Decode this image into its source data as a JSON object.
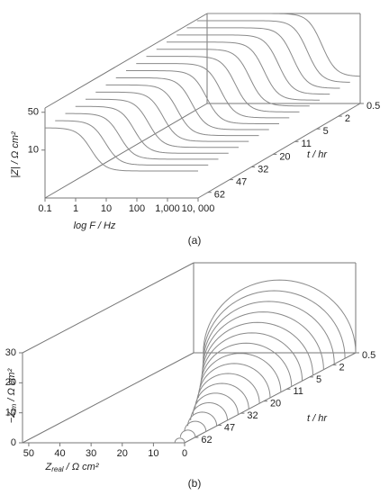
{
  "chart_data": [
    {
      "type": "waterfall3d",
      "panel_label": "(a)",
      "x_label": "log F / Hz",
      "y_label": "|Z| / Ω cm²",
      "z_label": "t / hr",
      "xscale": "log",
      "yscale": "log",
      "xlim": [
        0.1,
        10000
      ],
      "ylim": [
        1.3,
        60
      ],
      "xticks": [
        0.1,
        1,
        10,
        100,
        {
          "value": 1000,
          "label": "1,000"
        },
        {
          "value": 10000,
          "label": "10, 000"
        }
      ],
      "yticks": [
        10,
        50
      ],
      "zticks": [
        0.5,
        2,
        5,
        11,
        20,
        32,
        47,
        62
      ]
    },
    {
      "type": "nyquist3d",
      "panel_label": "(b)",
      "x_label_symbol": "Z",
      "x_label_sub": "real",
      "x_label_unit": " / Ω cm²",
      "y_label_symbol": "−Z",
      "y_label_sub": "im",
      "y_label_unit": " / Ω cm²",
      "z_label": "t / hr",
      "xlim": [
        52,
        0
      ],
      "ylim": [
        0,
        30
      ],
      "xticks": [
        50,
        40,
        30,
        20,
        10,
        0
      ],
      "yticks": [
        0,
        10,
        20,
        30
      ],
      "zticks": [
        0.5,
        2,
        5,
        11,
        20,
        32,
        47,
        62
      ]
    }
  ]
}
